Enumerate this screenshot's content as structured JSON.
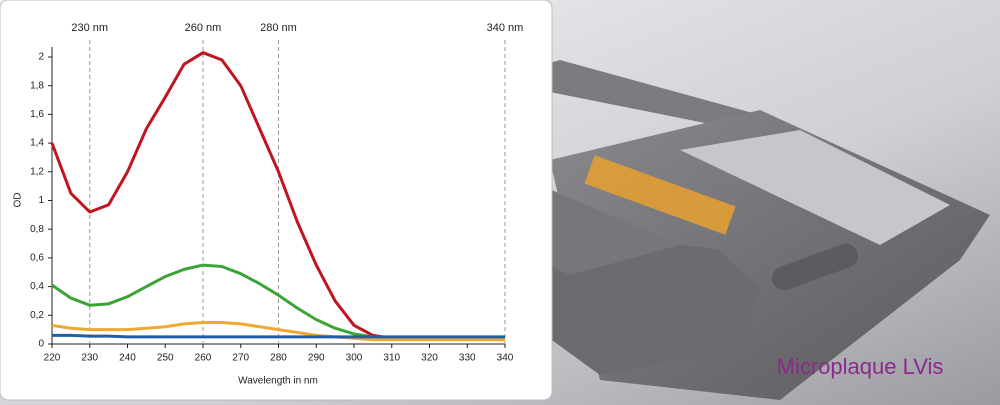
{
  "chart_data": {
    "type": "line",
    "x_label": "Wavelength in nm",
    "y_label": "OD",
    "x": [
      220,
      225,
      230,
      235,
      240,
      245,
      250,
      255,
      260,
      265,
      270,
      275,
      280,
      285,
      290,
      295,
      300,
      305,
      310,
      315,
      320,
      325,
      330,
      335,
      340
    ],
    "series": [
      {
        "color": "#c0141e",
        "values": [
          1.4,
          1.05,
          0.92,
          0.97,
          1.2,
          1.5,
          1.72,
          1.95,
          2.03,
          1.98,
          1.8,
          1.5,
          1.2,
          0.85,
          0.55,
          0.3,
          0.13,
          0.06,
          0.04,
          0.04,
          0.04,
          0.04,
          0.04,
          0.04,
          0.04
        ]
      },
      {
        "color": "#3aa535",
        "values": [
          0.41,
          0.32,
          0.27,
          0.28,
          0.33,
          0.4,
          0.47,
          0.52,
          0.55,
          0.54,
          0.49,
          0.42,
          0.34,
          0.25,
          0.17,
          0.11,
          0.07,
          0.05,
          0.04,
          0.04,
          0.04,
          0.04,
          0.04,
          0.04,
          0.04
        ]
      },
      {
        "color": "#f0a830",
        "values": [
          0.13,
          0.11,
          0.1,
          0.1,
          0.1,
          0.11,
          0.12,
          0.14,
          0.15,
          0.15,
          0.14,
          0.12,
          0.1,
          0.08,
          0.06,
          0.05,
          0.04,
          0.03,
          0.03,
          0.03,
          0.03,
          0.03,
          0.03,
          0.03,
          0.03
        ]
      },
      {
        "color": "#1f5fa8",
        "values": [
          0.06,
          0.06,
          0.055,
          0.055,
          0.05,
          0.05,
          0.05,
          0.05,
          0.05,
          0.05,
          0.05,
          0.05,
          0.05,
          0.05,
          0.05,
          0.05,
          0.05,
          0.05,
          0.05,
          0.05,
          0.05,
          0.05,
          0.05,
          0.05,
          0.05
        ]
      }
    ],
    "xlim": [
      220,
      340
    ],
    "xticks": [
      220,
      230,
      240,
      250,
      260,
      270,
      280,
      290,
      300,
      310,
      320,
      330,
      340
    ],
    "ylim": [
      0,
      2
    ],
    "yticks": [
      0,
      {
        "value": 0.2,
        "label": "0,2"
      },
      {
        "value": 0.4,
        "label": "0,4"
      },
      {
        "value": 0.6,
        "label": "0,6"
      },
      {
        "value": 0.8,
        "label": "0,8"
      },
      1,
      {
        "value": 1.2,
        "label": "1,2"
      },
      {
        "value": 1.4,
        "label": "1,4"
      },
      {
        "value": 1.6,
        "label": "1,6"
      },
      {
        "value": 1.8,
        "label": "1,8"
      },
      2
    ],
    "markers": [
      {
        "value": 230,
        "label": "230 nm"
      },
      {
        "value": 260,
        "label": "260 nm"
      },
      {
        "value": 280,
        "label": "280 nm"
      },
      {
        "value": 340,
        "label": "340 nm"
      }
    ],
    "caption": "Microplaque LVis"
  }
}
